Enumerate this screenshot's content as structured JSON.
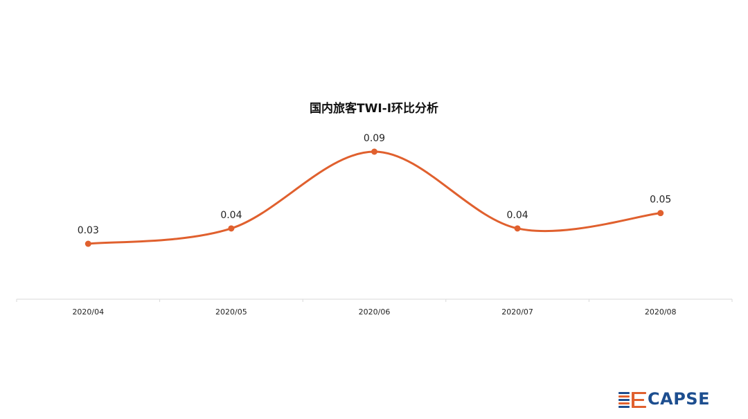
{
  "chart_data": {
    "type": "line",
    "title": "国内旅客TWI-I环比分析",
    "categories": [
      "2020/04",
      "2020/05",
      "2020/06",
      "2020/07",
      "2020/08"
    ],
    "series": [
      {
        "values": [
          0.03,
          0.04,
          0.09,
          0.04,
          0.05
        ],
        "labels": [
          "0.03",
          "0.04",
          "0.09",
          "0.04",
          "0.05"
        ]
      }
    ],
    "grid": false,
    "legend": "none",
    "smooth": true,
    "line_color": "#e0602e"
  },
  "logo": {
    "text": "CAPSE",
    "text_color": "#1d4e8f",
    "accent_color": "#e0602e"
  }
}
